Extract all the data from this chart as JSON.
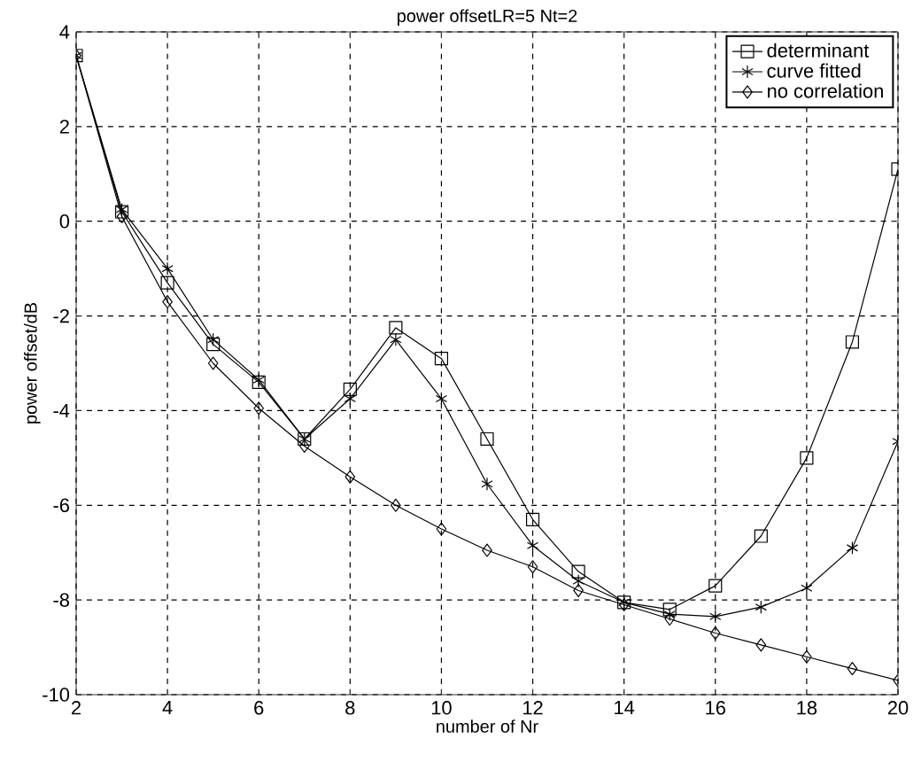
{
  "chart_data": {
    "type": "line",
    "title": "power offsetLR=5 Nt=2",
    "xlabel": "number of Nr",
    "ylabel": "power offset/dB",
    "x": [
      2,
      3,
      4,
      5,
      6,
      7,
      8,
      9,
      10,
      11,
      12,
      13,
      14,
      15,
      16,
      17,
      18,
      19,
      20
    ],
    "series": [
      {
        "name": "determinant",
        "color": "#000000",
        "marker": "square",
        "values": [
          3.5,
          0.2,
          -1.3,
          -2.6,
          -3.4,
          -4.6,
          -3.55,
          -2.25,
          -2.9,
          -4.6,
          -6.3,
          -7.4,
          -8.05,
          -8.2,
          -7.7,
          -6.65,
          -5.0,
          -2.55,
          1.1
        ]
      },
      {
        "name": "curve fitted",
        "color": "#000000",
        "marker": "cross",
        "values": [
          3.5,
          0.25,
          -1.0,
          -2.5,
          -3.35,
          -4.6,
          -3.75,
          -2.5,
          -3.75,
          -5.55,
          -6.85,
          -7.6,
          -8.05,
          -8.3,
          -8.35,
          -8.15,
          -7.75,
          -6.9,
          -4.65
        ]
      },
      {
        "name": "no correlation",
        "color": "#000000",
        "marker": "diamond",
        "values": [
          3.5,
          0.1,
          -1.7,
          -3.0,
          -3.95,
          -4.75,
          -5.4,
          -6.0,
          -6.5,
          -6.95,
          -7.3,
          -7.8,
          -8.1,
          -8.4,
          -8.7,
          -8.95,
          -9.2,
          -9.45,
          -9.7
        ]
      }
    ],
    "xlim": [
      2,
      20
    ],
    "xticks": [
      2,
      4,
      6,
      8,
      10,
      12,
      14,
      16,
      18,
      20
    ],
    "ylim": [
      -10,
      4
    ],
    "yticks": [
      -10,
      -8,
      -6,
      -4,
      -2,
      0,
      2,
      4
    ],
    "grid": true,
    "legend": "top right",
    "line_style": "solid"
  }
}
